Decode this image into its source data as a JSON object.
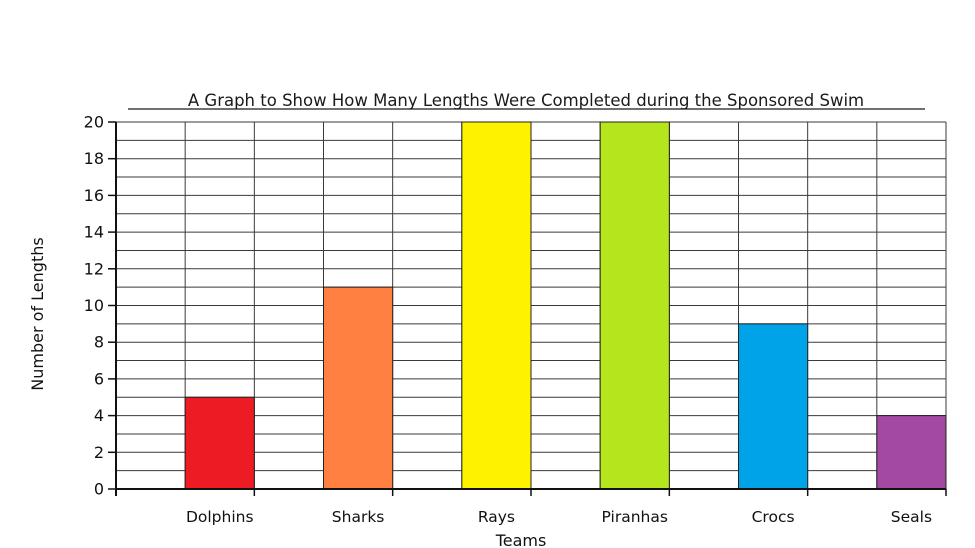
{
  "chart_data": {
    "type": "bar",
    "title": "A Graph to Show How Many Lengths Were Completed during the Sponsored Swim",
    "xlabel": "Teams",
    "ylabel": "Number of Lengths",
    "categories": [
      "Dolphins",
      "Sharks",
      "Rays",
      "Piranhas",
      "Crocs",
      "Seals"
    ],
    "values": [
      5,
      11,
      20,
      20,
      9,
      4
    ],
    "colors": [
      "#ed1c24",
      "#ff8040",
      "#fff200",
      "#b5e61d",
      "#00a2e8",
      "#a349a4"
    ],
    "ylim": [
      0,
      20
    ],
    "yticks": [
      0,
      2,
      4,
      6,
      8,
      10,
      12,
      14,
      16,
      18,
      20
    ],
    "grid": true,
    "legend": "none"
  }
}
